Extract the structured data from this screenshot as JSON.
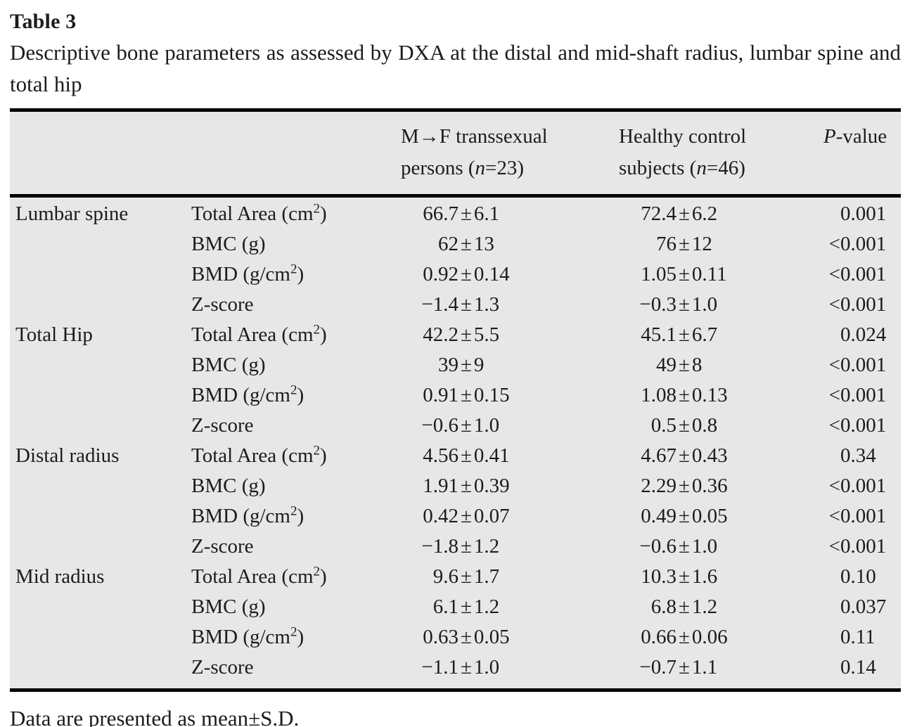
{
  "table": {
    "label": "Table 3",
    "caption": "Descriptive bone parameters as assessed by DXA at the distal and mid-shaft radius, lumbar spine and total hip",
    "header": {
      "mf": {
        "line1": "M→F transsexual",
        "line2_pre": "persons (",
        "n_italic": "n",
        "line2_post": "=23)"
      },
      "hc": {
        "line1": "Healthy control",
        "line2_pre": "subjects (",
        "n_italic": "n",
        "line2_post": "=46)"
      },
      "p": {
        "italic": "P",
        "rest": "-value"
      }
    },
    "symbols": {
      "plus_minus": "±",
      "less_than": "<"
    },
    "rows": [
      {
        "site": "Lumbar spine",
        "param": {
          "text": "Total Area (cm",
          "sup": "2",
          "after": ")"
        },
        "mf": "66.7±6.1",
        "hc": "72.4±6.2",
        "p": "0.001"
      },
      {
        "site": "",
        "param": {
          "text": "BMC (g)",
          "sup": "",
          "after": ""
        },
        "mf": "62±13",
        "hc": "76±12",
        "p": "<0.001"
      },
      {
        "site": "",
        "param": {
          "text": "BMD (g/cm",
          "sup": "2",
          "after": ")"
        },
        "mf": "0.92±0.14",
        "hc": "1.05±0.11",
        "p": "<0.001"
      },
      {
        "site": "",
        "param": {
          "text": "Z-score",
          "sup": "",
          "after": ""
        },
        "mf": "−1.4±1.3",
        "hc": "−0.3±1.0",
        "p": "<0.001"
      },
      {
        "site": "Total Hip",
        "param": {
          "text": "Total Area (cm",
          "sup": "2",
          "after": ")"
        },
        "mf": "42.2±5.5",
        "hc": "45.1±6.7",
        "p": "0.024"
      },
      {
        "site": "",
        "param": {
          "text": "BMC (g)",
          "sup": "",
          "after": ""
        },
        "mf": "39±9",
        "hc": "49±8",
        "p": "<0.001"
      },
      {
        "site": "",
        "param": {
          "text": "BMD (g/cm",
          "sup": "2",
          "after": ")"
        },
        "mf": "0.91±0.15",
        "hc": "1.08±0.13",
        "p": "<0.001"
      },
      {
        "site": "",
        "param": {
          "text": "Z-score",
          "sup": "",
          "after": ""
        },
        "mf": "−0.6±1.0",
        "hc": "0.5±0.8",
        "p": "<0.001"
      },
      {
        "site": "Distal radius",
        "param": {
          "text": "Total Area (cm",
          "sup": "2",
          "after": ")"
        },
        "mf": "4.56±0.41",
        "hc": "4.67±0.43",
        "p": "0.34"
      },
      {
        "site": "",
        "param": {
          "text": "BMC (g)",
          "sup": "",
          "after": ""
        },
        "mf": "1.91±0.39",
        "hc": "2.29±0.36",
        "p": "<0.001"
      },
      {
        "site": "",
        "param": {
          "text": "BMD (g/cm",
          "sup": "2",
          "after": ")"
        },
        "mf": "0.42±0.07",
        "hc": "0.49±0.05",
        "p": "<0.001"
      },
      {
        "site": "",
        "param": {
          "text": "Z-score",
          "sup": "",
          "after": ""
        },
        "mf": "−1.8±1.2",
        "hc": "−0.6±1.0",
        "p": "<0.001"
      },
      {
        "site": "Mid radius",
        "param": {
          "text": "Total Area (cm",
          "sup": "2",
          "after": ")"
        },
        "mf": "9.6±1.7",
        "hc": "10.3±1.6",
        "p": "0.10"
      },
      {
        "site": "",
        "param": {
          "text": "BMC (g)",
          "sup": "",
          "after": ""
        },
        "mf": "6.1±1.2",
        "hc": "6.8±1.2",
        "p": "0.037"
      },
      {
        "site": "",
        "param": {
          "text": "BMD (g/cm",
          "sup": "2",
          "after": ")"
        },
        "mf": "0.63±0.05",
        "hc": "0.66±0.06",
        "p": "0.11"
      },
      {
        "site": "",
        "param": {
          "text": "Z-score",
          "sup": "",
          "after": ""
        },
        "mf": "−1.1±1.0",
        "hc": "−0.7±1.1",
        "p": "0.14"
      }
    ],
    "footnote": "Data are presented as mean±S.D."
  },
  "colors": {
    "table_background": "#e7e7e8",
    "text": "#1c1c1c",
    "rule": "#000000"
  }
}
